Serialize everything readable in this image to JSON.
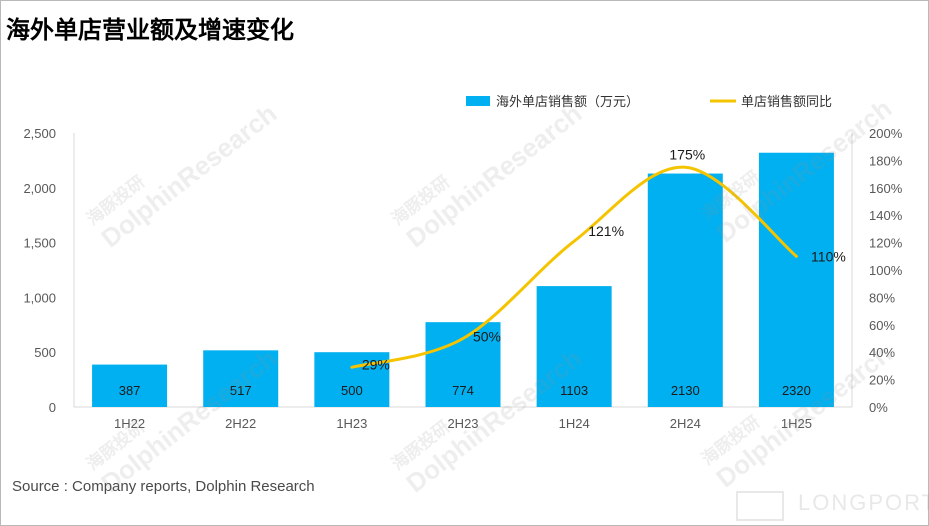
{
  "page": {
    "title": "海外单店营业额及增速变化",
    "source": "Source : Company reports, Dolphin Research",
    "watermark_cn": "海豚投研",
    "watermark_en": "DolphinResearch",
    "logo": "LONGPORT"
  },
  "chart_data": {
    "type": "bar",
    "categories": [
      "1H22",
      "2H22",
      "1H23",
      "2H23",
      "1H24",
      "2H24",
      "1H25"
    ],
    "series": [
      {
        "name": "海外单店销售额（万元）",
        "type": "bar",
        "axis": "left",
        "values": [
          387,
          517,
          500,
          774,
          1103,
          2130,
          2320
        ],
        "labels": [
          "387",
          "517",
          "500",
          "774",
          "1103",
          "2130",
          "2320"
        ],
        "color": "#00b0f0"
      },
      {
        "name": "单店销售额同比",
        "type": "line",
        "axis": "right",
        "values": [
          null,
          null,
          29,
          50,
          121,
          175,
          110
        ],
        "labels": [
          "",
          "",
          "29%",
          "50%",
          "121%",
          "175%",
          "110%"
        ],
        "color": "#f5c400"
      }
    ],
    "y_left": {
      "range": [
        0,
        2500
      ],
      "ticks": [
        "0",
        "500",
        "1,000",
        "1,500",
        "2,000",
        "2,500"
      ]
    },
    "y_right": {
      "range": [
        0,
        200
      ],
      "ticks": [
        "0%",
        "20%",
        "40%",
        "60%",
        "80%",
        "100%",
        "120%",
        "140%",
        "160%",
        "180%",
        "200%"
      ]
    },
    "grid": false,
    "legend": "top-right"
  }
}
